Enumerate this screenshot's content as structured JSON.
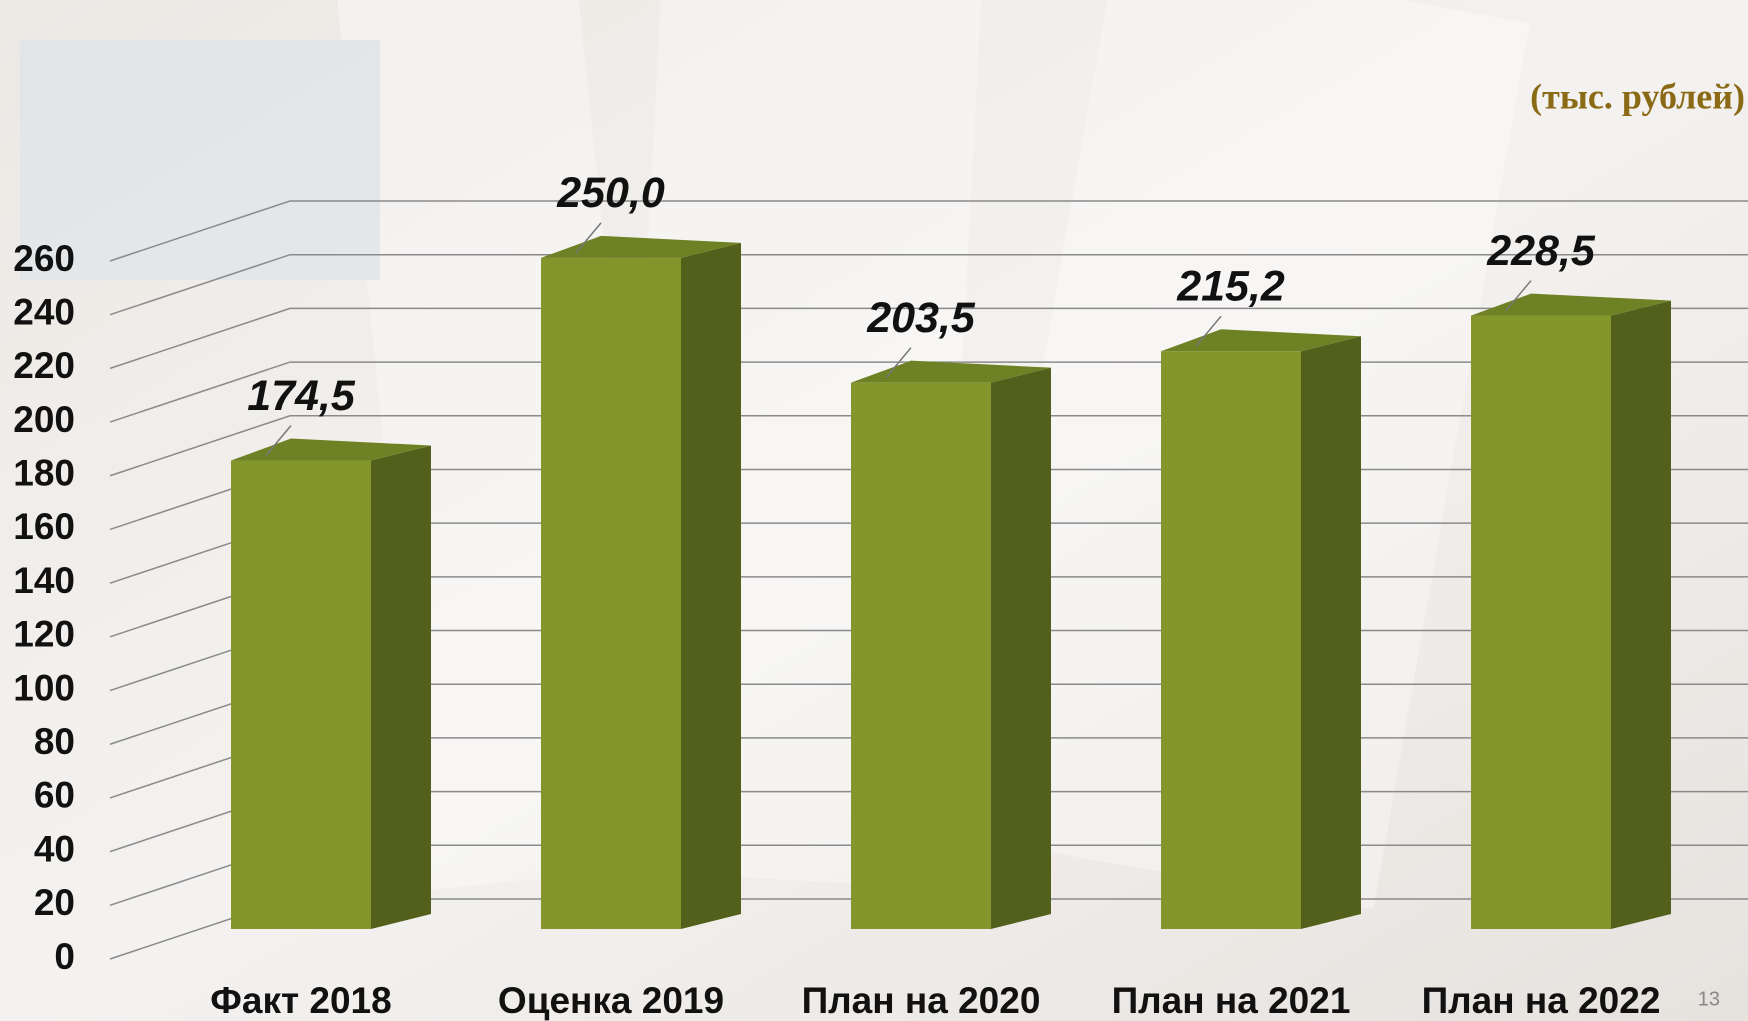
{
  "chart_data": {
    "type": "bar3d",
    "unit_label": "(тыс. рублей)",
    "categories": [
      "Факт 2018",
      "Оценка 2019",
      "План на 2020",
      "План на 2021",
      "План на 2022"
    ],
    "values": [
      174.5,
      250.0,
      203.5,
      215.2,
      228.5
    ],
    "value_labels": [
      "174,5",
      "250,0",
      "203,5",
      "215,2",
      "228,5"
    ],
    "color": "#84962b",
    "ylim": [
      0,
      260
    ],
    "yticks": [
      0,
      20,
      40,
      60,
      80,
      100,
      120,
      140,
      160,
      180,
      200,
      220,
      240,
      260
    ],
    "grid": true
  },
  "slide_number": "13"
}
